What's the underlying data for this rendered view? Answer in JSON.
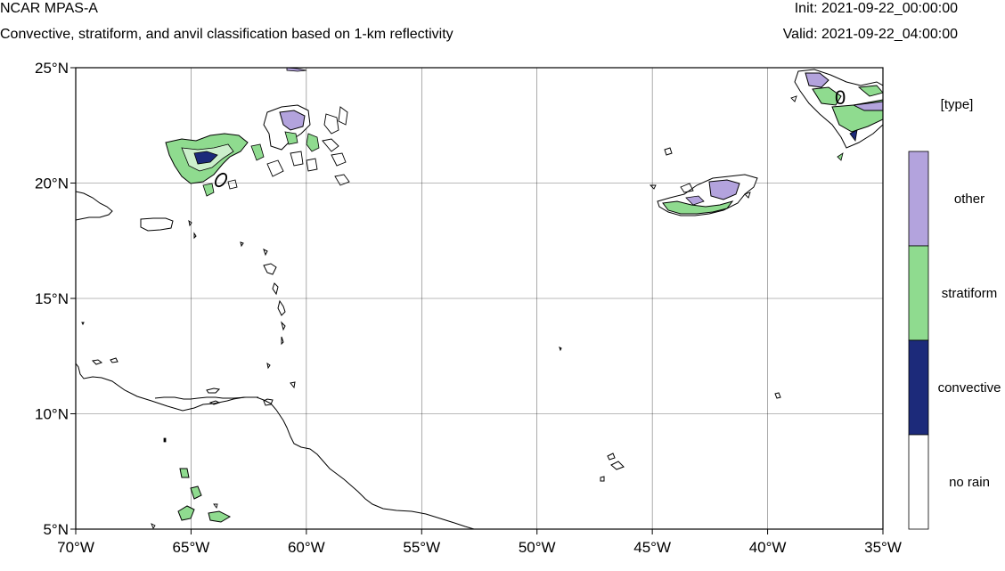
{
  "header": {
    "title": "NCAR MPAS-A",
    "subtitle": "Convective, stratiform, and anvil classification based on 1-km reflectivity",
    "init": "Init: 2021-09-22_00:00:00",
    "valid": "Valid: 2021-09-22_04:00:00"
  },
  "map": {
    "lon_range": [
      -70,
      -35
    ],
    "lat_range": [
      5,
      25
    ],
    "x_ticks": [
      {
        "lon": -70,
        "label": "70°W"
      },
      {
        "lon": -65,
        "label": "65°W"
      },
      {
        "lon": -60,
        "label": "60°W"
      },
      {
        "lon": -55,
        "label": "55°W"
      },
      {
        "lon": -50,
        "label": "50°W"
      },
      {
        "lon": -45,
        "label": "45°W"
      },
      {
        "lon": -40,
        "label": "40°W"
      },
      {
        "lon": -35,
        "label": "35°W"
      }
    ],
    "y_ticks": [
      {
        "lat": 25,
        "label": "25°N"
      },
      {
        "lat": 20,
        "label": "20°N"
      },
      {
        "lat": 15,
        "label": "15°N"
      },
      {
        "lat": 10,
        "label": "10°N"
      },
      {
        "lat": 5,
        "label": "5°N"
      }
    ],
    "gridlines": true,
    "contour_labels": [
      "0",
      "0"
    ]
  },
  "legend": {
    "title": "[type]",
    "items": [
      {
        "label": "other",
        "color": "#b3a3dd"
      },
      {
        "label": "stratiform",
        "color": "#8fdb8f"
      },
      {
        "label": "convective",
        "color": "#1c2a7a"
      },
      {
        "label": "no rain",
        "color": "#ffffff"
      }
    ]
  },
  "colors": {
    "other": "#b3a3dd",
    "stratiform": "#8fdb8f",
    "convective": "#1c2a7a",
    "no_rain": "#ffffff"
  }
}
